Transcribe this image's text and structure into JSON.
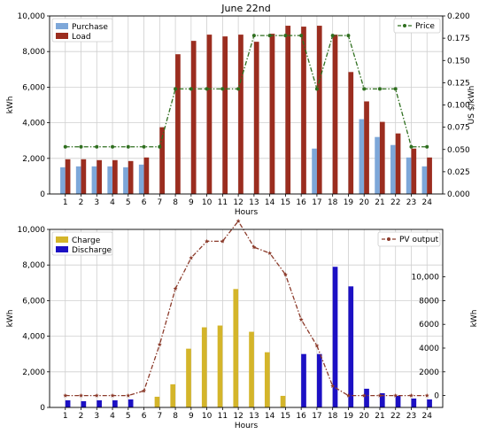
{
  "chart_data": [
    {
      "type": "bar",
      "title": "June 22nd",
      "xlabel": "Hours",
      "ylabel": "kWh",
      "y2label": "US $/kWh",
      "categories": [
        "1",
        "2",
        "3",
        "4",
        "5",
        "6",
        "7",
        "8",
        "9",
        "10",
        "11",
        "12",
        "13",
        "14",
        "15",
        "16",
        "17",
        "18",
        "19",
        "20",
        "21",
        "22",
        "23",
        "24"
      ],
      "ylim": [
        0,
        10000
      ],
      "y2lim": [
        0,
        0.2
      ],
      "yticks": [
        "0",
        "2,000",
        "4,000",
        "6,000",
        "8,000",
        "10,000"
      ],
      "y2ticks": [
        "0.000",
        "0.025",
        "0.050",
        "0.075",
        "0.100",
        "0.125",
        "0.150",
        "0.175",
        "0.200"
      ],
      "grid": true,
      "series": [
        {
          "name": "Purchase",
          "kind": "bar",
          "color": "#7da7d9",
          "values": [
            1500,
            1550,
            1550,
            1550,
            1500,
            1650,
            0,
            0,
            0,
            0,
            0,
            0,
            0,
            0,
            0,
            0,
            2550,
            0,
            0,
            4200,
            3200,
            2750,
            2050,
            1550
          ]
        },
        {
          "name": "Load",
          "kind": "bar",
          "color": "#9b2d1f",
          "values": [
            1950,
            1950,
            1900,
            1900,
            1850,
            2050,
            3750,
            7850,
            8600,
            8950,
            8850,
            8950,
            8550,
            9000,
            9450,
            9400,
            9450,
            8950,
            6850,
            5200,
            4050,
            3400,
            2550,
            2050
          ]
        },
        {
          "name": "Price",
          "kind": "line",
          "axis": "y2",
          "color": "#2f6f1f",
          "values": [
            0.053,
            0.053,
            0.053,
            0.053,
            0.053,
            0.053,
            0.053,
            0.118,
            0.118,
            0.118,
            0.118,
            0.118,
            0.178,
            0.178,
            0.178,
            0.178,
            0.118,
            0.178,
            0.178,
            0.118,
            0.118,
            0.118,
            0.053,
            0.053
          ]
        }
      ],
      "legend_left": "top-left",
      "legend_right": "top-right"
    },
    {
      "type": "bar",
      "xlabel": "Hours",
      "ylabel": "kWh",
      "y2label": "kWh",
      "categories": [
        "1",
        "2",
        "3",
        "4",
        "5",
        "6",
        "7",
        "8",
        "9",
        "10",
        "11",
        "12",
        "13",
        "14",
        "15",
        "16",
        "17",
        "18",
        "19",
        "20",
        "21",
        "22",
        "23",
        "24"
      ],
      "ylim": [
        0,
        10000
      ],
      "y2lim": [
        -1000,
        14000
      ],
      "yticks": [
        "0",
        "2,000",
        "4,000",
        "6,000",
        "8,000",
        "10,000"
      ],
      "y2ticks": [
        "0",
        "2000",
        "4000",
        "6000",
        "8000",
        "10,000"
      ],
      "grid": true,
      "series": [
        {
          "name": "Charge",
          "kind": "bar",
          "color": "#d4b52a",
          "values": [
            0,
            0,
            0,
            0,
            0,
            0,
            600,
            1300,
            3300,
            4500,
            4600,
            6650,
            4250,
            3100,
            650,
            0,
            0,
            0,
            0,
            0,
            0,
            0,
            0,
            0
          ]
        },
        {
          "name": "Discharge",
          "kind": "bar",
          "color": "#1c10c4",
          "values": [
            400,
            350,
            400,
            400,
            450,
            0,
            0,
            0,
            0,
            0,
            0,
            0,
            0,
            0,
            0,
            3000,
            3000,
            7900,
            6800,
            1050,
            800,
            650,
            500,
            450
          ]
        },
        {
          "name": "PV output",
          "kind": "line",
          "axis": "y2",
          "color": "#8b3a2a",
          "values": [
            0,
            0,
            0,
            0,
            0,
            400,
            4300,
            9000,
            11600,
            13000,
            13000,
            14700,
            12500,
            12000,
            10200,
            6400,
            4200,
            800,
            0,
            0,
            0,
            0,
            0,
            0
          ]
        }
      ],
      "legend_left": "top-left",
      "legend_right": "top-right"
    }
  ]
}
